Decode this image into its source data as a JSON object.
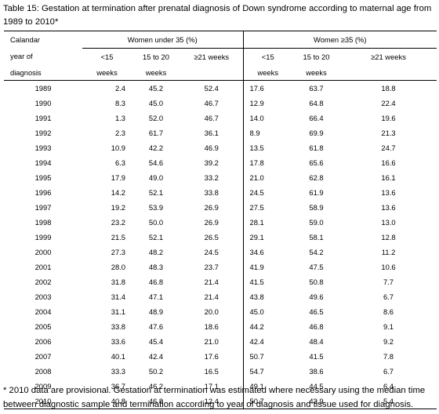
{
  "caption": {
    "line1": "Table 15: Gestation at termination after prenatal diagnosis of Down syndrome according to maternal age from",
    "line2": "1989 to 2010*"
  },
  "header": {
    "year_col": [
      "Calandar",
      "year of",
      "diagnosis"
    ],
    "group_under": "Women under 35 (%)",
    "group_over": "Women ≥35 (%)",
    "lt15": [
      "<15",
      "weeks"
    ],
    "mid": [
      "15 to 20",
      "weeks"
    ],
    "ge21": "≥21 weeks",
    "lt15_over": "<15",
    "mid_over": "15 to 20",
    "ge21_over": "≥21 weeks",
    "weeks": "weeks"
  },
  "rows": [
    {
      "year": "1989",
      "u_lt15": "2.4",
      "u_mid": "45.2",
      "u_ge21": "52.4",
      "o_lt15": "17.6",
      "o_mid": "63.7",
      "o_ge21": "18.8"
    },
    {
      "year": "1990",
      "u_lt15": "8.3",
      "u_mid": "45.0",
      "u_ge21": "46.7",
      "o_lt15": "12.9",
      "o_mid": "64.8",
      "o_ge21": "22.4"
    },
    {
      "year": "1991",
      "u_lt15": "1.3",
      "u_mid": "52.0",
      "u_ge21": "46.7",
      "o_lt15": "14.0",
      "o_mid": "66.4",
      "o_ge21": "19.6"
    },
    {
      "year": "1992",
      "u_lt15": "2.3",
      "u_mid": "61.7",
      "u_ge21": "36.1",
      "o_lt15": "8.9",
      "o_mid": "69.9",
      "o_ge21": "21.3"
    },
    {
      "year": "1993",
      "u_lt15": "10.9",
      "u_mid": "42.2",
      "u_ge21": "46.9",
      "o_lt15": "13.5",
      "o_mid": "61.8",
      "o_ge21": "24.7"
    },
    {
      "year": "1994",
      "u_lt15": "6.3",
      "u_mid": "54.6",
      "u_ge21": "39.2",
      "o_lt15": "17.8",
      "o_mid": "65.6",
      "o_ge21": "16.6"
    },
    {
      "year": "1995",
      "u_lt15": "17.9",
      "u_mid": "49.0",
      "u_ge21": "33.2",
      "o_lt15": "21.0",
      "o_mid": "62.8",
      "o_ge21": "16.1"
    },
    {
      "year": "1996",
      "u_lt15": "14.2",
      "u_mid": "52.1",
      "u_ge21": "33.8",
      "o_lt15": "24.5",
      "o_mid": "61.9",
      "o_ge21": "13.6"
    },
    {
      "year": "1997",
      "u_lt15": "19.2",
      "u_mid": "53.9",
      "u_ge21": "26.9",
      "o_lt15": "27.5",
      "o_mid": "58.9",
      "o_ge21": "13.6"
    },
    {
      "year": "1998",
      "u_lt15": "23.2",
      "u_mid": "50.0",
      "u_ge21": "26.9",
      "o_lt15": "28.1",
      "o_mid": "59.0",
      "o_ge21": "13.0"
    },
    {
      "year": "1999",
      "u_lt15": "21.5",
      "u_mid": "52.1",
      "u_ge21": "26.5",
      "o_lt15": "29.1",
      "o_mid": "58.1",
      "o_ge21": "12.8"
    },
    {
      "year": "2000",
      "u_lt15": "27.3",
      "u_mid": "48.2",
      "u_ge21": "24.5",
      "o_lt15": "34.6",
      "o_mid": "54.2",
      "o_ge21": "11.2"
    },
    {
      "year": "2001",
      "u_lt15": "28.0",
      "u_mid": "48.3",
      "u_ge21": "23.7",
      "o_lt15": "41.9",
      "o_mid": "47.5",
      "o_ge21": "10.6"
    },
    {
      "year": "2002",
      "u_lt15": "31.8",
      "u_mid": "46.8",
      "u_ge21": "21.4",
      "o_lt15": "41.5",
      "o_mid": "50.8",
      "o_ge21": "7.7"
    },
    {
      "year": "2003",
      "u_lt15": "31.4",
      "u_mid": "47.1",
      "u_ge21": "21.4",
      "o_lt15": "43.8",
      "o_mid": "49.6",
      "o_ge21": "6.7"
    },
    {
      "year": "2004",
      "u_lt15": "31.1",
      "u_mid": "48.9",
      "u_ge21": "20.0",
      "o_lt15": "45.0",
      "o_mid": "46.5",
      "o_ge21": "8.6"
    },
    {
      "year": "2005",
      "u_lt15": "33.8",
      "u_mid": "47.6",
      "u_ge21": "18.6",
      "o_lt15": "44.2",
      "o_mid": "46.8",
      "o_ge21": "9.1"
    },
    {
      "year": "2006",
      "u_lt15": "33.6",
      "u_mid": "45.4",
      "u_ge21": "21.0",
      "o_lt15": "42.4",
      "o_mid": "48.4",
      "o_ge21": "9.2"
    },
    {
      "year": "2007",
      "u_lt15": "40.1",
      "u_mid": "42.4",
      "u_ge21": "17.6",
      "o_lt15": "50.7",
      "o_mid": "41.5",
      "o_ge21": "7.8"
    },
    {
      "year": "2008",
      "u_lt15": "33.3",
      "u_mid": "50.2",
      "u_ge21": "16.5",
      "o_lt15": "54.7",
      "o_mid": "38.6",
      "o_ge21": "6.7"
    },
    {
      "year": "2009",
      "u_lt15": "36.7",
      "u_mid": "46.2",
      "u_ge21": "17.1",
      "o_lt15": "49.1",
      "o_mid": "44.5",
      "o_ge21": "6.4"
    },
    {
      "year": "2010",
      "u_lt15": "40.8",
      "u_mid": "46.8",
      "u_ge21": "12.4",
      "o_lt15": "50.7",
      "o_mid": "43.9",
      "o_ge21": "5.4"
    }
  ],
  "footnote": {
    "line1": "* 2010 data are provisional. Gestation at termination was estimated where necessary using the median time",
    "line2": "between diagnostic sample and termination according to year of diagnosis and tissue used for diagnosis."
  }
}
